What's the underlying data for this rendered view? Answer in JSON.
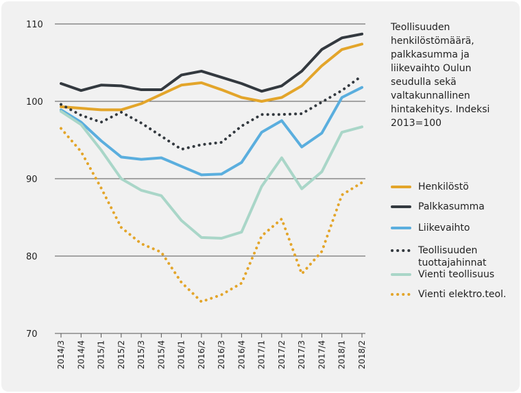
{
  "chart_data": {
    "type": "line",
    "title": "Teollisuuden henkilöstömäärä, palkkasumma ja liikevaihto Oulun seudulla sekä valtakunnallinen hintakehitys. Indeksi 2013=100",
    "categories": [
      "2014/3",
      "2014/4",
      "2015/1",
      "2015/2",
      "2015/3",
      "2015/4",
      "2016/1",
      "2016/2",
      "2016/3",
      "2016/4",
      "2017/1",
      "2017/2",
      "2017/3",
      "2017/4",
      "2018/1",
      "2018/2"
    ],
    "series": [
      {
        "name": "Henkilöstö",
        "color": "#e3a52a",
        "dash": "solid",
        "values": [
          99.3,
          99.1,
          98.9,
          98.9,
          99.7,
          100.9,
          102.1,
          102.4,
          101.5,
          100.5,
          100.0,
          100.5,
          102.0,
          104.6,
          106.7,
          107.4
        ]
      },
      {
        "name": "Palkkasumma",
        "color": "#33393f",
        "dash": "solid",
        "values": [
          102.3,
          101.4,
          102.1,
          102.0,
          101.5,
          101.5,
          103.4,
          103.9,
          103.1,
          102.3,
          101.3,
          102.0,
          103.9,
          106.7,
          108.2,
          108.7
        ]
      },
      {
        "name": "Liikevaihto",
        "color": "#5aaede",
        "dash": "solid",
        "values": [
          98.9,
          97.3,
          94.9,
          92.8,
          92.5,
          92.7,
          91.6,
          90.5,
          90.6,
          92.1,
          96.0,
          97.5,
          94.1,
          95.9,
          100.5,
          101.8
        ]
      },
      {
        "name": "Teollisuuden tuottajahinnat",
        "color": "#33393f",
        "dash": "dotted",
        "values": [
          99.6,
          98.2,
          97.3,
          98.6,
          97.2,
          95.5,
          93.8,
          94.4,
          94.7,
          96.8,
          98.3,
          98.3,
          98.4,
          99.9,
          101.4,
          103.3
        ]
      },
      {
        "name": "Vienti teollisuus",
        "color": "#a9d6c8",
        "dash": "solid",
        "values": [
          98.7,
          97.0,
          93.7,
          90.0,
          88.5,
          87.8,
          84.6,
          82.4,
          82.3,
          83.1,
          89.0,
          92.7,
          88.7,
          90.9,
          96.0,
          96.7
        ]
      },
      {
        "name": "Vienti elektro.teol.",
        "color": "#e3a52a",
        "dash": "dotted",
        "values": [
          96.5,
          93.5,
          88.8,
          83.7,
          81.6,
          80.5,
          76.6,
          74.1,
          75.0,
          76.5,
          82.6,
          84.8,
          77.7,
          80.6,
          87.9,
          89.5
        ]
      }
    ],
    "ylim": [
      70,
      110
    ],
    "yticks": [
      70,
      80,
      90,
      100,
      110
    ],
    "grid": true
  }
}
